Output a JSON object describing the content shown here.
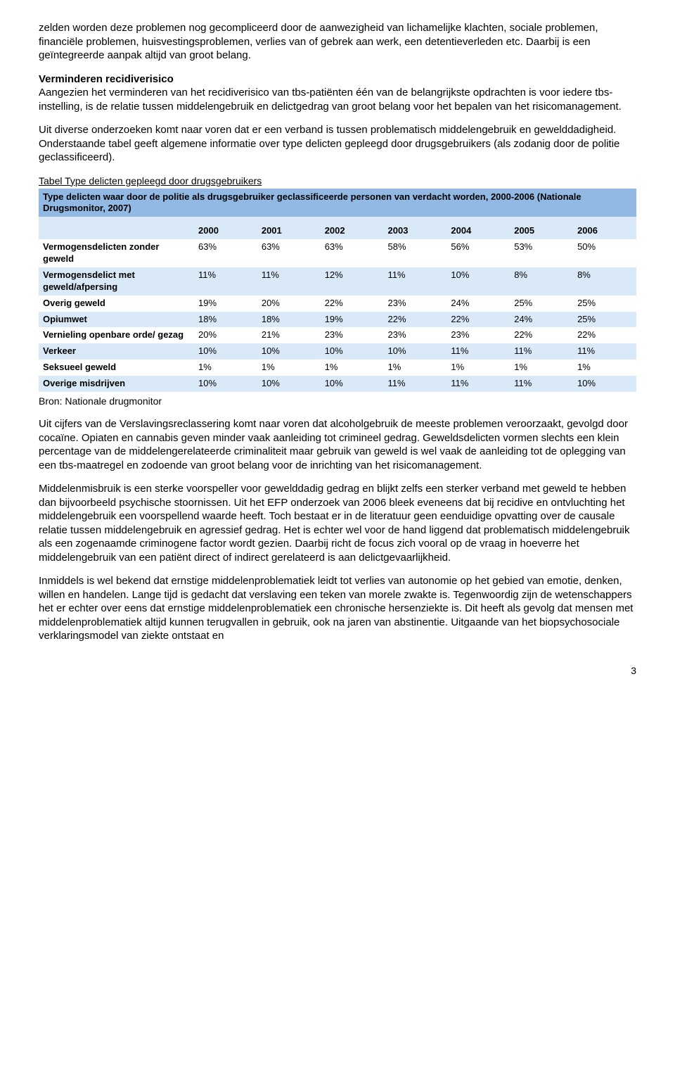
{
  "para1": "zelden worden deze problemen nog gecompliceerd door de aanwezigheid van lichamelijke klachten, sociale problemen, financiële problemen, huisvestingsproblemen, verlies van of gebrek aan werk, een detentieverleden etc. Daarbij is een geïntegreerde aanpak altijd van groot belang.",
  "section_head": "Verminderen recidiverisico",
  "para2": "Aangezien het verminderen van het recidiverisico van tbs-patiënten één van de belangrijkste opdrachten is voor iedere tbs-instelling, is de relatie tussen middelengebruik en delictgedrag van groot belang voor het bepalen van het risicomanagement.",
  "para3": "Uit diverse onderzoeken komt naar voren dat er een verband is tussen problematisch middelengebruik en gewelddadigheid. Onderstaande tabel geeft algemene informatie over type delicten gepleegd door drugsgebruikers (als zodanig door de politie geclassificeerd).",
  "table_caption": "Tabel  Type delicten gepleegd door drugsgebruikers",
  "table_header": "Type delicten waar door de politie als drugsgebruiker geclassificeerde personen van verdacht worden, 2000-2006 (Nationale Drugsmonitor, 2007)",
  "years": [
    "2000",
    "2001",
    "2002",
    "2003",
    "2004",
    "2005",
    "2006"
  ],
  "rows": [
    {
      "label": "Vermogensdelicten zonder geweld",
      "vals": [
        "63%",
        "63%",
        "63%",
        "58%",
        "56%",
        "53%",
        "50%"
      ]
    },
    {
      "label": "Vermogensdelict met geweld/afpersing",
      "vals": [
        "11%",
        "11%",
        "12%",
        "11%",
        "10%",
        "8%",
        "8%"
      ]
    },
    {
      "label": "Overig geweld",
      "vals": [
        "19%",
        "20%",
        "22%",
        "23%",
        "24%",
        "25%",
        "25%"
      ]
    },
    {
      "label": "Opiumwet",
      "vals": [
        "18%",
        "18%",
        "19%",
        "22%",
        "22%",
        "24%",
        "25%"
      ]
    },
    {
      "label": "Vernieling openbare orde/ gezag",
      "vals": [
        "20%",
        "21%",
        "23%",
        "23%",
        "23%",
        "22%",
        "22%"
      ]
    },
    {
      "label": "Verkeer",
      "vals": [
        "10%",
        "10%",
        "10%",
        "10%",
        "11%",
        "11%",
        "11%"
      ]
    },
    {
      "label": "Seksueel geweld",
      "vals": [
        "1%",
        "1%",
        "1%",
        "1%",
        "1%",
        "1%",
        "1%"
      ]
    },
    {
      "label": "Overige misdrijven",
      "vals": [
        "10%",
        "10%",
        "10%",
        "11%",
        "11%",
        "11%",
        "10%"
      ]
    }
  ],
  "table_source": "Bron: Nationale drugmonitor",
  "colors": {
    "header_bg": "#91b9e3",
    "stripe_bg": "#d9e9f7",
    "white": "#ffffff"
  },
  "para4": "Uit cijfers van de Verslavingsreclassering komt naar voren dat alcoholgebruik de meeste problemen veroorzaakt, gevolgd door cocaïne. Opiaten en cannabis geven minder vaak aanleiding tot crimineel gedrag. Geweldsdelicten vormen slechts een klein percentage van de middelengerelateerde criminaliteit maar gebruik van geweld is wel vaak de aanleiding tot de oplegging van een tbs-maatregel en zodoende van groot belang voor de inrichting van het risicomanagement.",
  "para5": "Middelenmisbruik is een sterke voorspeller voor gewelddadig gedrag en blijkt zelfs een sterker verband met geweld te hebben dan bijvoorbeeld psychische stoornissen. Uit het EFP onderzoek van 2006 bleek eveneens dat bij recidive en ontvluchting het middelengebruik een voorspellend waarde heeft. Toch bestaat er in de literatuur geen eenduidige opvatting over de causale relatie tussen middelengebruik en agressief gedrag.  Het is echter wel voor de hand liggend dat problematisch middelengebruik als een zogenaamde criminogene factor wordt gezien. Daarbij richt de focus zich vooral op de vraag in hoeverre het middelengebruik van een patiënt direct of indirect gerelateerd is aan delictgevaarlijkheid.",
  "para6": "Inmiddels is wel bekend dat ernstige middelenproblematiek leidt tot verlies van autonomie op het gebied van emotie, denken, willen en handelen. Lange tijd is gedacht dat verslaving een teken van morele zwakte is. Tegenwoordig zijn de wetenschappers het er echter over eens dat ernstige middelenproblematiek een chronische hersenziekte is.  Dit heeft als gevolg dat mensen met middelenproblematiek altijd kunnen terugvallen in gebruik, ook na jaren van abstinentie. Uitgaande van het biopsychosociale verklaringsmodel van ziekte ontstaat en",
  "page_number": "3"
}
